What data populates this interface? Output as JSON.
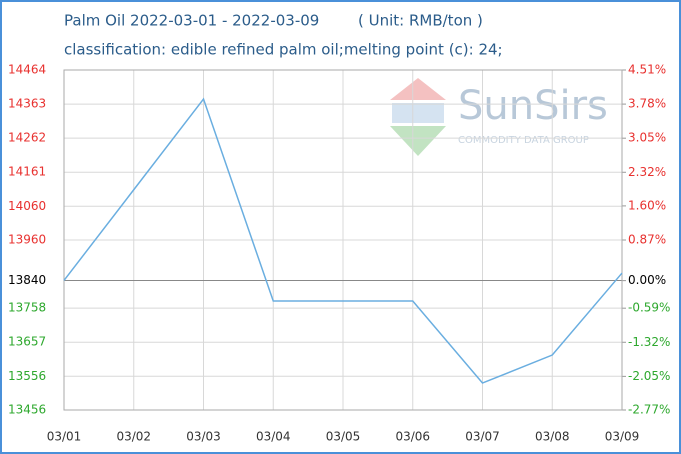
{
  "chart_data": {
    "type": "line",
    "title": "Palm Oil 2022-03-01 - 2022-03-09",
    "unit": "( Unit: RMB/ton )",
    "subtitle": "classification: edible refined palm oil;melting point (c): 24;",
    "watermark": "SunSirs",
    "watermark_sub": "COMMODITY DATA GROUP",
    "categories": [
      "03/01",
      "03/02",
      "03/03",
      "03/04",
      "03/05",
      "03/06",
      "03/07",
      "03/08",
      "03/09"
    ],
    "series": [
      {
        "name": "Palm Oil",
        "color": "#6aaee0",
        "values": [
          13840,
          14109,
          14378,
          13779,
          13779,
          13779,
          13536,
          13619,
          13862
        ]
      }
    ],
    "ylim": [
      13456,
      14464
    ],
    "yticks": [
      14464,
      14363,
      14262,
      14161,
      14060,
      13960,
      13840,
      13758,
      13657,
      13556,
      13456
    ],
    "y2lim": [
      -2.77,
      4.51
    ],
    "y2ticks": [
      {
        "value": 4.51,
        "label": "4.51%"
      },
      {
        "value": 3.78,
        "label": "3.78%"
      },
      {
        "value": 3.05,
        "label": "3.05%"
      },
      {
        "value": 2.32,
        "label": "2.32%"
      },
      {
        "value": 1.6,
        "label": "1.60%"
      },
      {
        "value": 0.87,
        "label": "0.87%"
      },
      {
        "value": 0,
        "label": "0.00%"
      },
      {
        "value": -0.59,
        "label": "-0.59%"
      },
      {
        "value": -1.32,
        "label": "-1.32%"
      },
      {
        "value": -2.05,
        "label": "-2.05%"
      },
      {
        "value": -2.77,
        "label": "-2.77%"
      }
    ],
    "grid": true,
    "up_color": "#e8312f",
    "down_color": "#2ea82e"
  }
}
